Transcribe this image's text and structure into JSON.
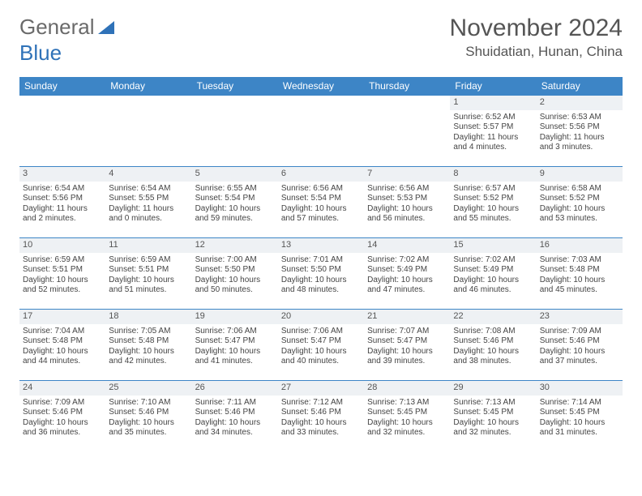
{
  "logo": {
    "text1": "General",
    "text2": "Blue"
  },
  "title": "November 2024",
  "location": "Shuidatian, Hunan, China",
  "colors": {
    "header_bg": "#3d85c6",
    "header_text": "#ffffff",
    "border": "#3d85c6",
    "daynum_bg": "#eef1f4",
    "text": "#444444",
    "logo_gray": "#6a6a6a",
    "logo_blue": "#2f72b8"
  },
  "weekdays": [
    "Sunday",
    "Monday",
    "Tuesday",
    "Wednesday",
    "Thursday",
    "Friday",
    "Saturday"
  ],
  "start_day_index": 5,
  "days": [
    {
      "n": 1,
      "sr": "6:52 AM",
      "ss": "5:57 PM",
      "dl": "11 hours and 4 minutes."
    },
    {
      "n": 2,
      "sr": "6:53 AM",
      "ss": "5:56 PM",
      "dl": "11 hours and 3 minutes."
    },
    {
      "n": 3,
      "sr": "6:54 AM",
      "ss": "5:56 PM",
      "dl": "11 hours and 2 minutes."
    },
    {
      "n": 4,
      "sr": "6:54 AM",
      "ss": "5:55 PM",
      "dl": "11 hours and 0 minutes."
    },
    {
      "n": 5,
      "sr": "6:55 AM",
      "ss": "5:54 PM",
      "dl": "10 hours and 59 minutes."
    },
    {
      "n": 6,
      "sr": "6:56 AM",
      "ss": "5:54 PM",
      "dl": "10 hours and 57 minutes."
    },
    {
      "n": 7,
      "sr": "6:56 AM",
      "ss": "5:53 PM",
      "dl": "10 hours and 56 minutes."
    },
    {
      "n": 8,
      "sr": "6:57 AM",
      "ss": "5:52 PM",
      "dl": "10 hours and 55 minutes."
    },
    {
      "n": 9,
      "sr": "6:58 AM",
      "ss": "5:52 PM",
      "dl": "10 hours and 53 minutes."
    },
    {
      "n": 10,
      "sr": "6:59 AM",
      "ss": "5:51 PM",
      "dl": "10 hours and 52 minutes."
    },
    {
      "n": 11,
      "sr": "6:59 AM",
      "ss": "5:51 PM",
      "dl": "10 hours and 51 minutes."
    },
    {
      "n": 12,
      "sr": "7:00 AM",
      "ss": "5:50 PM",
      "dl": "10 hours and 50 minutes."
    },
    {
      "n": 13,
      "sr": "7:01 AM",
      "ss": "5:50 PM",
      "dl": "10 hours and 48 minutes."
    },
    {
      "n": 14,
      "sr": "7:02 AM",
      "ss": "5:49 PM",
      "dl": "10 hours and 47 minutes."
    },
    {
      "n": 15,
      "sr": "7:02 AM",
      "ss": "5:49 PM",
      "dl": "10 hours and 46 minutes."
    },
    {
      "n": 16,
      "sr": "7:03 AM",
      "ss": "5:48 PM",
      "dl": "10 hours and 45 minutes."
    },
    {
      "n": 17,
      "sr": "7:04 AM",
      "ss": "5:48 PM",
      "dl": "10 hours and 44 minutes."
    },
    {
      "n": 18,
      "sr": "7:05 AM",
      "ss": "5:48 PM",
      "dl": "10 hours and 42 minutes."
    },
    {
      "n": 19,
      "sr": "7:06 AM",
      "ss": "5:47 PM",
      "dl": "10 hours and 41 minutes."
    },
    {
      "n": 20,
      "sr": "7:06 AM",
      "ss": "5:47 PM",
      "dl": "10 hours and 40 minutes."
    },
    {
      "n": 21,
      "sr": "7:07 AM",
      "ss": "5:47 PM",
      "dl": "10 hours and 39 minutes."
    },
    {
      "n": 22,
      "sr": "7:08 AM",
      "ss": "5:46 PM",
      "dl": "10 hours and 38 minutes."
    },
    {
      "n": 23,
      "sr": "7:09 AM",
      "ss": "5:46 PM",
      "dl": "10 hours and 37 minutes."
    },
    {
      "n": 24,
      "sr": "7:09 AM",
      "ss": "5:46 PM",
      "dl": "10 hours and 36 minutes."
    },
    {
      "n": 25,
      "sr": "7:10 AM",
      "ss": "5:46 PM",
      "dl": "10 hours and 35 minutes."
    },
    {
      "n": 26,
      "sr": "7:11 AM",
      "ss": "5:46 PM",
      "dl": "10 hours and 34 minutes."
    },
    {
      "n": 27,
      "sr": "7:12 AM",
      "ss": "5:46 PM",
      "dl": "10 hours and 33 minutes."
    },
    {
      "n": 28,
      "sr": "7:13 AM",
      "ss": "5:45 PM",
      "dl": "10 hours and 32 minutes."
    },
    {
      "n": 29,
      "sr": "7:13 AM",
      "ss": "5:45 PM",
      "dl": "10 hours and 32 minutes."
    },
    {
      "n": 30,
      "sr": "7:14 AM",
      "ss": "5:45 PM",
      "dl": "10 hours and 31 minutes."
    }
  ],
  "labels": {
    "sunrise": "Sunrise:",
    "sunset": "Sunset:",
    "daylight": "Daylight:"
  }
}
